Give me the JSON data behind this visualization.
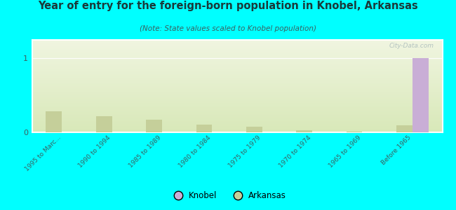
{
  "title": "Year of entry for the foreign-born population in Knobel, Arkansas",
  "subtitle": "(Note: State values scaled to Knobel population)",
  "categories": [
    "1995 to Marc...",
    "1990 to 1994",
    "1985 to 1989",
    "1980 to 1984",
    "1975 to 1979",
    "1970 to 1974",
    "1965 to 1969",
    "Before 1965"
  ],
  "knobel_values": [
    0,
    0,
    0,
    0,
    0,
    0,
    0,
    1
  ],
  "arkansas_values": [
    0.28,
    0.22,
    0.17,
    0.1,
    0.08,
    0.03,
    0.01,
    0.09
  ],
  "knobel_color": "#c9aed6",
  "arkansas_color": "#c5cf9a",
  "bg_color_top": "#f0f5e0",
  "bg_color_bottom": "#d8e8b8",
  "outer_bg": "#00ffff",
  "ylim": [
    0,
    1.25
  ],
  "yticks": [
    0,
    1
  ],
  "bar_width": 0.32,
  "watermark": "City-Data.com",
  "title_color": "#1a3a3a",
  "subtitle_color": "#3a6060",
  "tick_color": "#3a6060"
}
